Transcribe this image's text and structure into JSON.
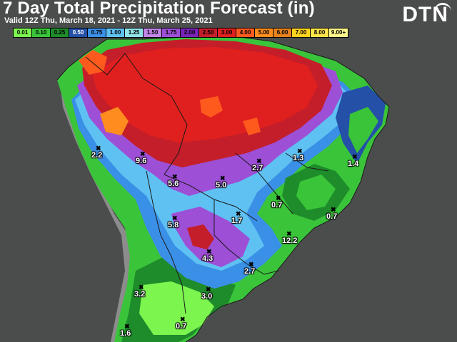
{
  "header": {
    "title": "7 Day Total Precipitation Forecast (in)",
    "subtitle": "Valid 12Z Thu, March 18, 2021 - 12Z Thu, March 25, 2021"
  },
  "brand": {
    "logo_text": "DTN"
  },
  "legend": [
    {
      "label": "0.01",
      "color": "#7cf54f",
      "text_color": "#000000"
    },
    {
      "label": "0.10",
      "color": "#3ac43a",
      "text_color": "#000000"
    },
    {
      "label": "0.25",
      "color": "#1e8c2a",
      "text_color": "#000000"
    },
    {
      "label": "0.50",
      "color": "#2450a8",
      "text_color": "#ffffff"
    },
    {
      "label": "0.75",
      "color": "#3a8fe6",
      "text_color": "#000000"
    },
    {
      "label": "1.00",
      "color": "#5fc1f2",
      "text_color": "#000000"
    },
    {
      "label": "1.25",
      "color": "#8fe3e8",
      "text_color": "#000000"
    },
    {
      "label": "1.50",
      "color": "#c184e8",
      "text_color": "#000000"
    },
    {
      "label": "1.75",
      "color": "#9d4fd6",
      "text_color": "#000000"
    },
    {
      "label": "2.00",
      "color": "#7a22b8",
      "text_color": "#000000"
    },
    {
      "label": "2.50",
      "color": "#c41e2a",
      "text_color": "#000000"
    },
    {
      "label": "3.00",
      "color": "#e0201e",
      "text_color": "#000000"
    },
    {
      "label": "4.00",
      "color": "#ff5a1e",
      "text_color": "#000000"
    },
    {
      "label": "5.00",
      "color": "#ff8c1e",
      "text_color": "#000000"
    },
    {
      "label": "6.00",
      "color": "#e6821e",
      "text_color": "#000000"
    },
    {
      "label": "7.00",
      "color": "#ffd21e",
      "text_color": "#000000"
    },
    {
      "label": "8.00",
      "color": "#ffe44a",
      "text_color": "#000000"
    },
    {
      "label": "9.00+",
      "color": "#fff78c",
      "text_color": "#000000"
    }
  ],
  "cities": [
    {
      "value": "2.2",
      "icon": "x-marker-icon"
    },
    {
      "value": "9.6",
      "icon": "x-marker-icon"
    },
    {
      "value": "5.6",
      "icon": "x-marker-icon"
    },
    {
      "value": "5.0",
      "icon": "x-marker-icon"
    },
    {
      "value": "2.7",
      "icon": "x-marker-icon"
    },
    {
      "value": "1.3",
      "icon": "x-marker-icon"
    },
    {
      "value": "1.4",
      "icon": "x-marker-icon"
    },
    {
      "value": "0.7",
      "icon": "x-marker-icon"
    },
    {
      "value": "0.7",
      "icon": "x-marker-icon"
    },
    {
      "value": "1.7",
      "icon": "x-marker-icon"
    },
    {
      "value": "5.8",
      "icon": "x-marker-icon"
    },
    {
      "value": "12.2",
      "icon": "x-marker-icon"
    },
    {
      "value": "4.3",
      "icon": "x-marker-icon"
    },
    {
      "value": "2.7",
      "icon": "x-marker-icon"
    },
    {
      "value": "3.2",
      "icon": "x-marker-icon"
    },
    {
      "value": "3.0",
      "icon": "x-marker-icon"
    },
    {
      "value": "1.6",
      "icon": "x-marker-icon"
    },
    {
      "value": "0.7",
      "icon": "x-marker-icon"
    }
  ]
}
